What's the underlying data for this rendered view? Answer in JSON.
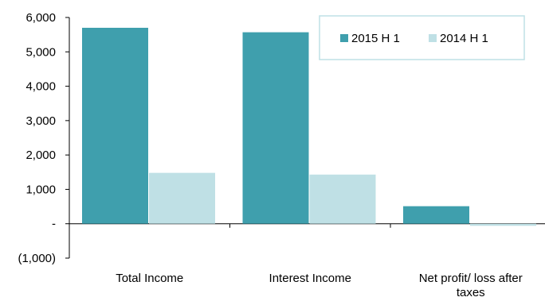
{
  "chart_data": {
    "type": "bar",
    "categories": [
      "Total Income",
      "Interest Income",
      "Net profit/ loss after taxes"
    ],
    "category_lines": [
      [
        "Total Income"
      ],
      [
        "Interest Income"
      ],
      [
        "Net profit/ loss after",
        "taxes"
      ]
    ],
    "series": [
      {
        "name": "2015 H 1",
        "color": "#3f9fad",
        "values": [
          5700,
          5570,
          510
        ]
      },
      {
        "name": "2014 H 1",
        "color": "#bfe0e5",
        "values": [
          1480,
          1430,
          -60
        ]
      }
    ],
    "ylim": [
      -1000,
      6000
    ],
    "yticks": [
      -1000,
      0,
      1000,
      2000,
      3000,
      4000,
      5000,
      6000
    ],
    "ytick_labels": [
      "(1,000)",
      "-",
      "1,000",
      "2,000",
      "3,000",
      "4,000",
      "5,000",
      "6,000"
    ],
    "grid": false,
    "legend_position": "top-right",
    "title": "",
    "xlabel": "",
    "ylabel": ""
  }
}
